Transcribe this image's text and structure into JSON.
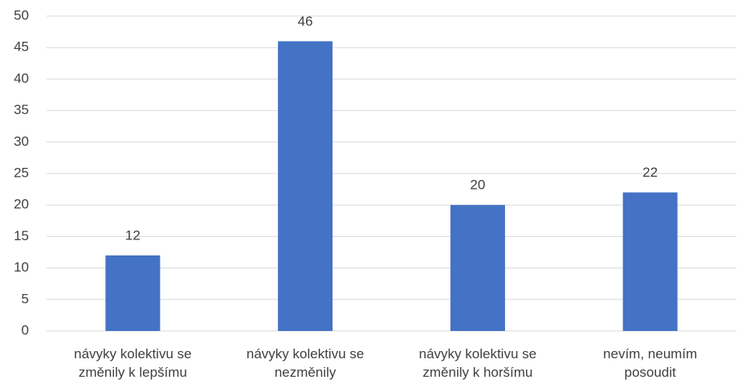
{
  "chart_data": {
    "type": "bar",
    "categories": [
      "návyky kolektivu se\nzměnily k lepšímu",
      "návyky kolektivu se\nnezměnily",
      "návyky kolektivu se\nzměnily k horšímu",
      "nevím, neumím\nposoudit"
    ],
    "values": [
      12,
      46,
      20,
      22
    ],
    "color": "#4472c4",
    "ylim": [
      0,
      50
    ],
    "yticks": [
      0,
      5,
      10,
      15,
      20,
      25,
      30,
      35,
      40,
      45,
      50
    ],
    "grid": true
  }
}
